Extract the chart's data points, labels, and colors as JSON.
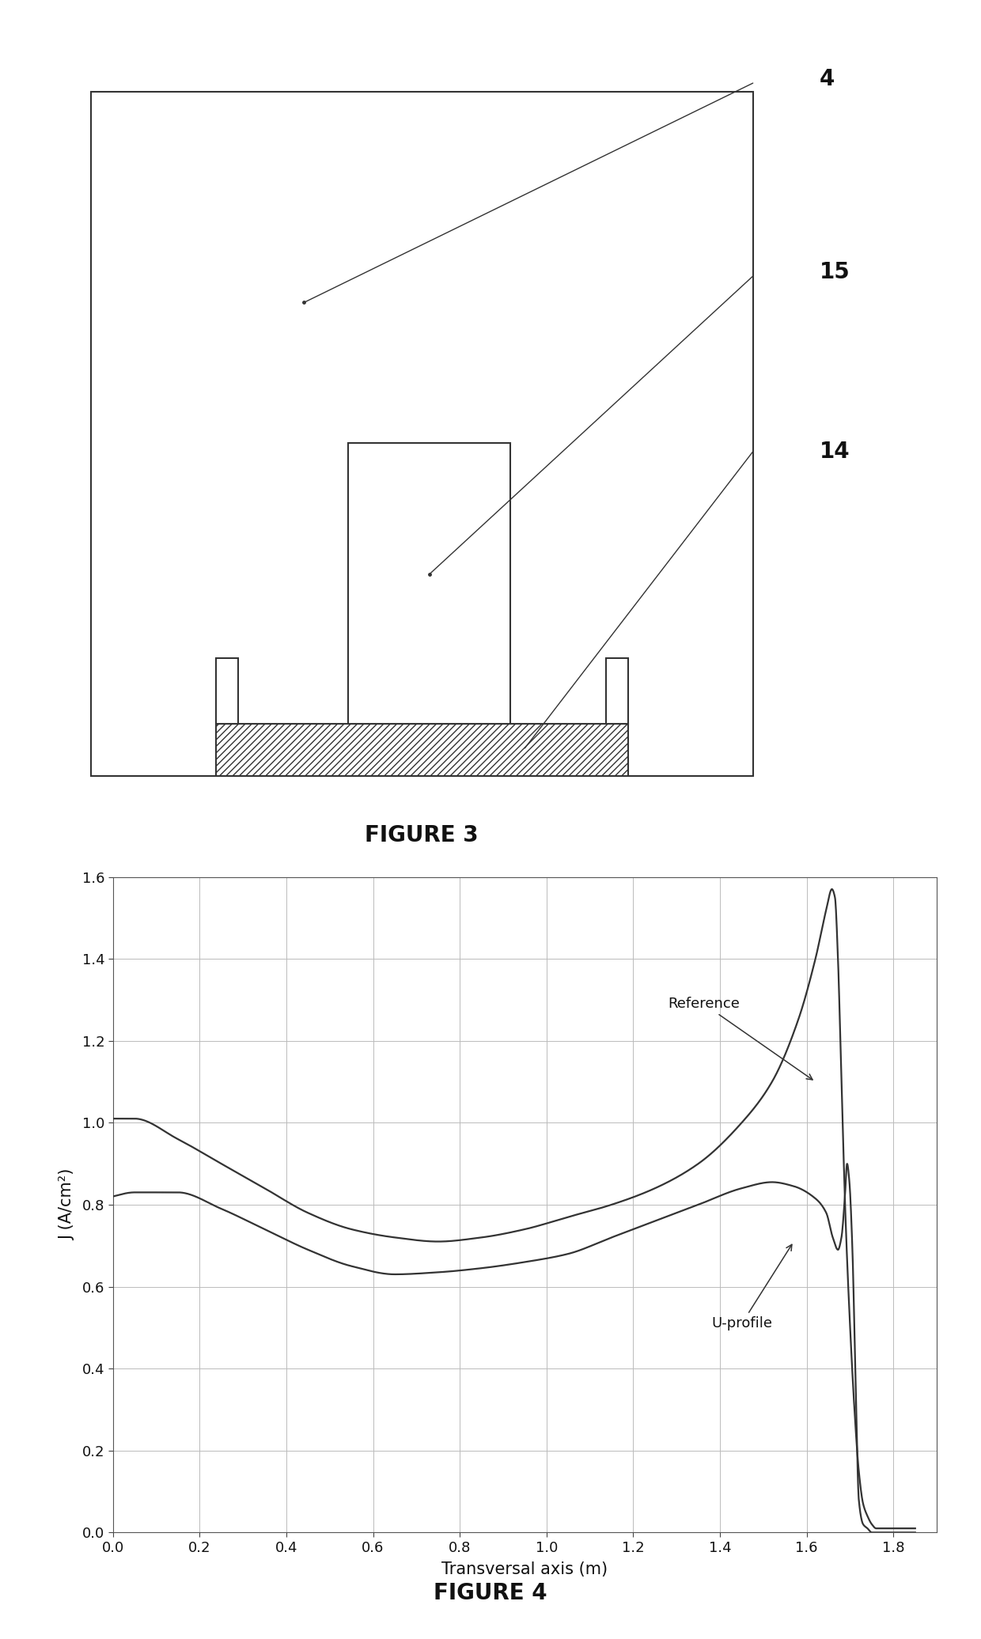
{
  "fig3_title": "FIGURE 3",
  "fig4_title": "FIGURE 4",
  "fig4_xlabel": "Transversal axis (m)",
  "fig4_ylabel": "J (A/cm²)",
  "fig4_xlim": [
    0.0,
    1.9
  ],
  "fig4_ylim": [
    0.0,
    1.6
  ],
  "fig4_xticks": [
    0.0,
    0.2,
    0.4,
    0.6,
    0.8,
    1.0,
    1.2,
    1.4,
    1.6,
    1.8
  ],
  "fig4_yticks": [
    0.0,
    0.2,
    0.4,
    0.6,
    0.8,
    1.0,
    1.2,
    1.4,
    1.6
  ],
  "label_4": "4",
  "label_15": "15",
  "label_14": "14",
  "line_color": "#333333",
  "bg_color": "#ffffff",
  "grid_color": "#bbbbbb"
}
